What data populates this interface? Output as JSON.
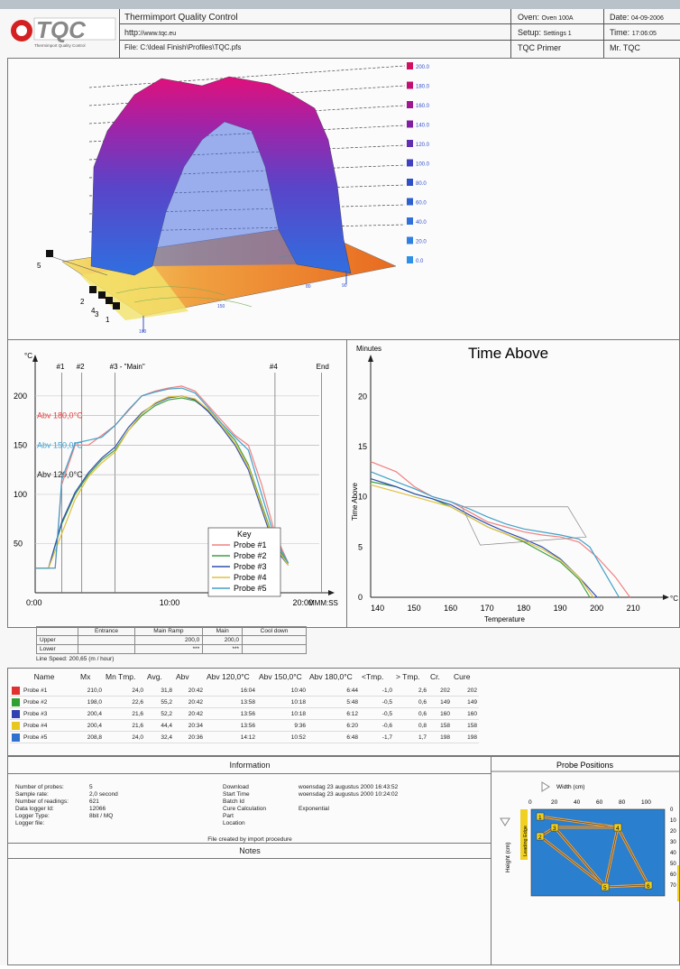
{
  "header": {
    "company": "Thermimport Quality Control",
    "url": "http://www.tqc.eu",
    "file": "File: C:\\Ideal Finish\\Profiles\\TQC.pfs",
    "oven_label": "Oven:",
    "oven": "Oven 100A",
    "setup_label": "Setup:",
    "setup": "Settings 1",
    "product": "TQC Primer",
    "date_label": "Date:",
    "date": "04-09-2006",
    "time_label": "Time:",
    "time": "17:06:05",
    "operator": "Mr. TQC",
    "url_label": "http:",
    "url_value": "//www.tqc.eu",
    "logo_text": "TQC",
    "logo_sub": "Thermimport Quality Control"
  },
  "plot3d": {
    "legend": [
      "200.0",
      "180.0",
      "160.0",
      "140.0",
      "120.0",
      "100.0",
      "80.0",
      "60.0",
      "40.0",
      "20.0",
      "0.0"
    ],
    "legend_colors": [
      "#d01060",
      "#c01070",
      "#a01890",
      "#8020a0",
      "#6030b0",
      "#4040c0",
      "#3050c8",
      "#3060d0",
      "#3070d8",
      "#3080e0",
      "#3090e8"
    ],
    "probes": [
      "5",
      "2",
      "4",
      "3",
      "1"
    ],
    "floor_labels": [
      "160",
      "150",
      "80",
      "90"
    ]
  },
  "temp_chart": {
    "unit": "°C",
    "phases": [
      "#1",
      "#2",
      "#3 - \"Main\"",
      "#4",
      "End"
    ],
    "refs": [
      "Abv 180,0°C",
      "Abv 150,0°C",
      "Abv 120,0°C"
    ],
    "x_unit": "MMM:SS",
    "key_title": "Key",
    "key": [
      "Probe #1",
      "Probe #2",
      "Probe #3",
      "Probe #4",
      "Probe #5"
    ]
  },
  "chart_data": [
    {
      "type": "line",
      "title": "",
      "ylabel": "°C",
      "xlabel": "MMM:SS",
      "x_ticks": [
        "0:00",
        "10:00",
        "20:00"
      ],
      "y_ticks": [
        50,
        100,
        150,
        200
      ],
      "ylim": [
        0,
        220
      ],
      "xlim": [
        0,
        22
      ],
      "series": [
        {
          "name": "Probe #1",
          "color": "#f08080",
          "x": [
            0,
            1.5,
            2,
            3,
            4,
            5,
            6,
            7,
            8,
            9,
            10,
            11,
            12,
            13,
            14,
            15,
            16,
            17,
            18,
            19
          ],
          "y": [
            25,
            25,
            110,
            150,
            150,
            160,
            170,
            185,
            200,
            205,
            208,
            210,
            205,
            190,
            175,
            160,
            150,
            110,
            60,
            30
          ]
        },
        {
          "name": "Probe #2",
          "color": "#40a040",
          "x": [
            0,
            1,
            2,
            3,
            4,
            5,
            6,
            7,
            8,
            9,
            10,
            11,
            12,
            13,
            14,
            15,
            16,
            17,
            18,
            19
          ],
          "y": [
            25,
            25,
            70,
            100,
            120,
            135,
            145,
            165,
            180,
            190,
            196,
            198,
            195,
            185,
            170,
            155,
            130,
            90,
            50,
            30
          ]
        },
        {
          "name": "Probe #3",
          "color": "#3050b0",
          "x": [
            0,
            1,
            2,
            3,
            4,
            5,
            6,
            7,
            8,
            9,
            10,
            11,
            12,
            13,
            14,
            15,
            16,
            17,
            18,
            19
          ],
          "y": [
            25,
            25,
            72,
            102,
            122,
            137,
            148,
            168,
            183,
            192,
            198,
            200,
            196,
            184,
            168,
            150,
            125,
            85,
            45,
            28
          ]
        },
        {
          "name": "Probe #4",
          "color": "#e0c040",
          "x": [
            0,
            1,
            2,
            3,
            4,
            5,
            6,
            7,
            8,
            9,
            10,
            11,
            12,
            13,
            14,
            15,
            16,
            17,
            18,
            19
          ],
          "y": [
            25,
            25,
            60,
            95,
            118,
            132,
            143,
            165,
            182,
            193,
            199,
            200,
            197,
            186,
            170,
            152,
            128,
            88,
            48,
            28
          ]
        },
        {
          "name": "Probe #5",
          "color": "#40a0c8",
          "x": [
            0,
            1.5,
            2,
            3,
            4,
            5,
            6,
            7,
            8,
            9,
            10,
            11,
            12,
            13,
            14,
            15,
            16,
            17,
            18,
            19
          ],
          "y": [
            25,
            25,
            115,
            152,
            155,
            158,
            170,
            186,
            200,
            204,
            207,
            208,
            203,
            188,
            172,
            158,
            145,
            100,
            55,
            30
          ]
        }
      ]
    },
    {
      "type": "line",
      "title": "Time Above",
      "ylabel": "Time Above",
      "xlabel": "Temperature",
      "y_unit": "Minutes",
      "x_unit": "°C",
      "x_ticks": [
        140,
        150,
        160,
        170,
        180,
        190,
        200,
        210
      ],
      "y_ticks": [
        0,
        5,
        10,
        15,
        20
      ],
      "xlim": [
        138,
        218
      ],
      "ylim": [
        0,
        22
      ],
      "series": [
        {
          "name": "Probe #1",
          "color": "#f08080",
          "x": [
            138,
            145,
            150,
            155,
            160,
            165,
            170,
            175,
            180,
            185,
            190,
            195,
            200,
            205,
            209
          ],
          "y": [
            13.5,
            12.5,
            11,
            10,
            9.5,
            8.5,
            7.5,
            7,
            6.5,
            6.2,
            6,
            5.5,
            4,
            2,
            0
          ]
        },
        {
          "name": "Probe #2",
          "color": "#40a040",
          "x": [
            138,
            145,
            150,
            155,
            160,
            165,
            170,
            175,
            180,
            185,
            190,
            195,
            198
          ],
          "y": [
            11.5,
            11,
            10.3,
            9.8,
            9,
            8,
            7,
            6.3,
            5.5,
            4.5,
            3.5,
            1.8,
            0
          ]
        },
        {
          "name": "Probe #3",
          "color": "#3050b0",
          "x": [
            138,
            145,
            150,
            155,
            160,
            165,
            170,
            175,
            180,
            185,
            190,
            195,
            200
          ],
          "y": [
            11.8,
            11,
            10.3,
            9.8,
            9.2,
            8.2,
            7.3,
            6.5,
            5.8,
            5,
            3.8,
            2,
            0
          ]
        },
        {
          "name": "Probe #4",
          "color": "#e0c040",
          "x": [
            138,
            145,
            150,
            155,
            160,
            165,
            170,
            175,
            180,
            185,
            190,
            195,
            199
          ],
          "y": [
            11.2,
            10.5,
            10,
            9.5,
            9,
            8,
            7,
            6.3,
            5.6,
            4.8,
            3.7,
            2,
            0
          ]
        },
        {
          "name": "Probe #5",
          "color": "#40a0c8",
          "x": [
            138,
            145,
            150,
            155,
            160,
            165,
            170,
            175,
            180,
            185,
            190,
            195,
            198,
            206
          ],
          "y": [
            12.5,
            11.5,
            10.8,
            10,
            9.5,
            8.8,
            8,
            7.3,
            6.8,
            6.5,
            6.2,
            5.8,
            5,
            0
          ]
        }
      ]
    }
  ],
  "phase_table": {
    "headers": [
      "",
      "Entrance",
      "Main Ramp",
      "Main",
      "Cool down"
    ],
    "rows": [
      [
        "Upper",
        "",
        "200,0",
        "200,0",
        ""
      ],
      [
        "Lower",
        "",
        "***",
        "***",
        ""
      ]
    ],
    "line_speed": "Line Speed: 200,65 (m / hour)"
  },
  "stats": {
    "headers": [
      "Name",
      "Mx",
      "Mn Tmp.",
      "Avg.",
      "Abv",
      "Abv 120,0°C",
      "Abv 150,0°C",
      "Abv 180,0°C",
      "<Tmp.",
      "> Tmp.",
      "Cr.",
      "Cure"
    ],
    "rows": [
      {
        "color": "#e03030",
        "cells": [
          "Probe #1",
          "210,0",
          "24,0",
          "31,8",
          "20:42",
          "16:04",
          "10:40",
          "6:44",
          "-1,0",
          "2,6",
          "202",
          "202"
        ]
      },
      {
        "color": "#30a030",
        "cells": [
          "Probe #2",
          "198,0",
          "22,6",
          "55,2",
          "20:42",
          "13:58",
          "10:18",
          "5:48",
          "-0,5",
          "0,6",
          "149",
          "149"
        ]
      },
      {
        "color": "#3040b0",
        "cells": [
          "Probe #3",
          "200,4",
          "21,6",
          "52,2",
          "20:42",
          "13:56",
          "10:18",
          "6:12",
          "-0,5",
          "0,6",
          "160",
          "160"
        ]
      },
      {
        "color": "#e8c820",
        "cells": [
          "Probe #4",
          "200,4",
          "21,6",
          "44,4",
          "20:34",
          "13:56",
          "9:36",
          "6:20",
          "-0,6",
          "0,8",
          "158",
          "158"
        ]
      },
      {
        "color": "#3070d0",
        "cells": [
          "Probe #5",
          "208,8",
          "24,0",
          "32,4",
          "20:36",
          "14:12",
          "10:52",
          "6:48",
          "-1,7",
          "1,7",
          "198",
          "198"
        ]
      }
    ]
  },
  "information": {
    "title": "Information",
    "left": [
      [
        "Number of probes:",
        "5"
      ],
      [
        "Sample rate:",
        "2,0 second"
      ],
      [
        "Number of readings:",
        "621"
      ],
      [
        "Data logger Id:",
        "12066"
      ],
      [
        "Logger Type:",
        "8bit / MQ"
      ],
      [
        "Logger file:",
        ""
      ]
    ],
    "right": [
      [
        "Download",
        "woensdag 23 augustus 2000 16:43:52"
      ],
      [
        "Start Time",
        "woensdag 23 augustus 2000 10:24:02"
      ],
      [
        "Batch Id",
        ""
      ],
      [
        "Cure Calculation",
        "Exponential"
      ],
      [
        "Part",
        ""
      ],
      [
        "Location",
        ""
      ]
    ],
    "footer": "File created by import procedure"
  },
  "notes": {
    "title": "Notes"
  },
  "probe_positions": {
    "title": "Probe Positions",
    "width_label": "Width (cm)",
    "height_label": "Height (cm)",
    "leading": "Leading Edge",
    "trailing": "Trailing Edge",
    "x_ticks": [
      "0",
      "20",
      "40",
      "60",
      "80",
      "100"
    ],
    "y_ticks": [
      "0",
      "10",
      "20",
      "30",
      "40",
      "50",
      "60",
      "70"
    ],
    "points": [
      "1",
      "2",
      "3",
      "4",
      "5",
      "6"
    ]
  }
}
